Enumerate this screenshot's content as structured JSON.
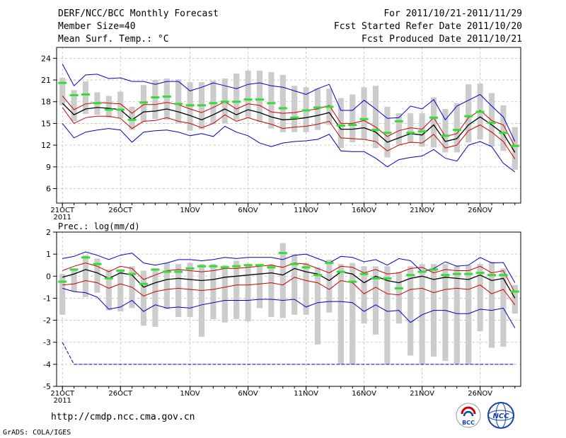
{
  "header": {
    "line1": "DERF/NCC/BCC Monthly Forecast",
    "line2": "Member Size=40",
    "line3": "Mean Surf. Temp.: °C",
    "right1": "For 2011/10/21-2011/11/29",
    "right2": "Fcst Started Refer Date 2011/10/20",
    "right3": "Fcst Produced Date 2011/10/21"
  },
  "footer": {
    "url": "http://cmdp.ncc.cma.gov.cn",
    "credit": "GrADS: COLA/IGES",
    "logo_bcc": "BCC",
    "logo_ncc": "NCC"
  },
  "colors": {
    "max_min": "#0000cc",
    "spread": "#cc0000",
    "mean": "#000000",
    "ens_dot": "#33dd33",
    "box": "#cccccc"
  },
  "chart_data": [
    {
      "type": "line",
      "title": "Mean Surf. Temp.: °C",
      "xlabel": "",
      "ylabel": "",
      "ylim": [
        4,
        25.5
      ],
      "yticks": [
        6,
        9,
        12,
        15,
        18,
        21,
        24
      ],
      "xlim": [
        20.5,
        60.5
      ],
      "xtick_days": [
        21,
        26,
        32,
        37,
        42,
        47,
        52,
        57
      ],
      "xtick_labels": [
        "21OCT",
        "26OCT",
        "1NOV",
        "6NOV",
        "11NOV",
        "16NOV",
        "21NOV",
        "26NOV"
      ],
      "year_label": "2011",
      "x": [
        21,
        22,
        23,
        24,
        25,
        26,
        27,
        28,
        29,
        30,
        31,
        32,
        33,
        34,
        35,
        36,
        37,
        38,
        39,
        40,
        41,
        42,
        43,
        44,
        45,
        46,
        47,
        48,
        49,
        50,
        51,
        52,
        53,
        54,
        55,
        56,
        57,
        58,
        59,
        60
      ],
      "series": [
        {
          "name": "max",
          "values": [
            23.2,
            20.2,
            21.7,
            21.8,
            21.2,
            21.3,
            20.8,
            20.8,
            20.4,
            20.8,
            20.8,
            19.5,
            20.0,
            20.6,
            20.2,
            19.8,
            20.4,
            20.6,
            20.2,
            20.0,
            19.5,
            19.0,
            19.8,
            20.4,
            16.8,
            16.8,
            18.2,
            17.0,
            15.7,
            15.8,
            17.4,
            17.0,
            18.3,
            15.5,
            17.4,
            18.2,
            19.0,
            17.4,
            15.9,
            12.5
          ]
        },
        {
          "name": "upper",
          "values": [
            18.8,
            16.9,
            17.7,
            17.9,
            17.8,
            17.7,
            16.4,
            17.6,
            17.6,
            17.9,
            17.6,
            17.0,
            16.5,
            17.2,
            18.0,
            17.0,
            17.7,
            17.5,
            16.6,
            16.4,
            16.5,
            16.8,
            17.0,
            17.5,
            15.0,
            15.0,
            15.4,
            14.5,
            13.2,
            14.0,
            14.4,
            14.2,
            15.8,
            13.2,
            13.6,
            15.8,
            16.8,
            15.4,
            14.8,
            11.8
          ]
        },
        {
          "name": "mean",
          "values": [
            17.8,
            16.2,
            17.0,
            17.2,
            17.1,
            16.9,
            15.5,
            16.6,
            16.7,
            17.0,
            16.6,
            16.1,
            15.5,
            16.2,
            17.0,
            16.2,
            16.9,
            16.5,
            15.9,
            15.5,
            15.6,
            15.8,
            16.1,
            16.5,
            14.2,
            14.2,
            14.4,
            13.8,
            12.4,
            13.0,
            13.6,
            13.4,
            14.8,
            12.5,
            12.9,
            14.8,
            15.9,
            14.8,
            13.6,
            11.0
          ]
        },
        {
          "name": "lower",
          "values": [
            17.2,
            15.0,
            15.8,
            16.0,
            16.0,
            15.7,
            14.3,
            15.3,
            15.4,
            15.8,
            15.3,
            15.0,
            14.4,
            15.0,
            16.2,
            15.3,
            15.8,
            15.3,
            14.9,
            14.3,
            14.5,
            14.6,
            14.9,
            15.3,
            13.0,
            12.9,
            12.8,
            12.5,
            11.2,
            12.0,
            12.4,
            12.3,
            13.5,
            11.6,
            12.0,
            14.0,
            14.8,
            13.8,
            12.5,
            10.1
          ]
        },
        {
          "name": "min",
          "values": [
            15.0,
            13.0,
            13.8,
            14.1,
            14.3,
            14.1,
            12.4,
            13.8,
            14.0,
            14.1,
            13.8,
            13.3,
            13.6,
            13.2,
            14.6,
            13.8,
            13.3,
            12.3,
            11.8,
            12.3,
            12.5,
            12.6,
            12.8,
            13.5,
            11.2,
            11.1,
            11.1,
            10.2,
            9.0,
            10.0,
            10.3,
            10.5,
            11.4,
            10.2,
            9.8,
            12.0,
            12.5,
            11.8,
            9.5,
            8.3
          ]
        },
        {
          "name": "ensemble_member",
          "values": [
            20.6,
            18.9,
            19.0,
            17.8,
            16.9,
            16.9,
            15.5,
            17.9,
            18.6,
            18.7,
            17.7,
            17.5,
            17.5,
            17.8,
            18.0,
            18.0,
            18.3,
            18.3,
            17.8,
            17.1,
            15.8,
            16.8,
            17.2,
            17.3,
            14.7,
            14.8,
            15.6,
            14.1,
            13.7,
            15.3,
            13.7,
            13.9,
            15.8,
            13.3,
            14.1,
            16.0,
            16.6,
            15.1,
            13.7,
            11.9
          ]
        },
        {
          "name": "box_high",
          "values": [
            21.3,
            19.6,
            20.8,
            19.3,
            18.8,
            19.4,
            17.3,
            20.3,
            21.0,
            21.2,
            21.1,
            20.7,
            20.7,
            20.9,
            21.2,
            21.9,
            22.3,
            22.3,
            22.1,
            21.7,
            20.2,
            20.0,
            19.8,
            19.8,
            18.5,
            19.0,
            20.0,
            20.2,
            17.3,
            16.4,
            16.4,
            16.4,
            18.6,
            17.0,
            17.8,
            20.4,
            20.5,
            19.2,
            17.5,
            14.5
          ]
        },
        {
          "name": "box_low",
          "values": [
            17.5,
            15.3,
            16.3,
            16.2,
            15.8,
            15.7,
            14.1,
            15.2,
            15.6,
            15.5,
            15.0,
            14.0,
            14.2,
            14.9,
            15.0,
            15.5,
            15.7,
            15.2,
            14.3,
            13.8,
            13.8,
            13.8,
            14.1,
            14.8,
            11.6,
            12.4,
            12.8,
            11.6,
            10.3,
            12.1,
            12.3,
            11.8,
            11.7,
            11.0,
            11.0,
            12.4,
            12.8,
            11.8,
            11.2,
            8.6
          ]
        }
      ]
    },
    {
      "type": "line",
      "title": "Prec.: log(mm/d)",
      "xlabel": "",
      "ylabel": "",
      "ylim": [
        -5,
        2
      ],
      "yticks": [
        -5,
        -4,
        -3,
        -2,
        -1,
        0,
        1,
        2
      ],
      "xlim": [
        20.5,
        60.5
      ],
      "xtick_days": [
        21,
        26,
        32,
        37,
        42,
        47,
        52,
        57
      ],
      "xtick_labels": [
        "21OCT",
        "26OCT",
        "1NOV",
        "6NOV",
        "11NOV",
        "16NOV",
        "21NOV",
        "26NOV"
      ],
      "year_label": "2011",
      "x": [
        21,
        22,
        23,
        24,
        25,
        26,
        27,
        28,
        29,
        30,
        31,
        32,
        33,
        34,
        35,
        36,
        37,
        38,
        39,
        40,
        41,
        42,
        43,
        44,
        45,
        46,
        47,
        48,
        49,
        50,
        51,
        52,
        53,
        54,
        55,
        56,
        57,
        58,
        59,
        60
      ],
      "series": [
        {
          "name": "max",
          "values": [
            0.8,
            0.9,
            1.1,
            0.95,
            0.75,
            0.95,
            1.05,
            0.6,
            0.5,
            0.6,
            0.75,
            0.75,
            0.7,
            0.75,
            0.85,
            0.8,
            0.85,
            0.85,
            0.85,
            0.75,
            0.95,
            1.0,
            0.8,
            0.6,
            0.9,
            0.85,
            0.65,
            0.75,
            0.5,
            0.8,
            0.7,
            0.2,
            0.35,
            0.65,
            0.45,
            0.5,
            0.85,
            0.6,
            0.62,
            -0.3
          ]
        },
        {
          "name": "upper",
          "values": [
            0.25,
            0.45,
            0.6,
            0.45,
            0.2,
            0.45,
            0.35,
            -0.15,
            0.05,
            0.25,
            0.3,
            0.25,
            0.2,
            0.25,
            0.35,
            0.35,
            0.4,
            0.45,
            0.5,
            0.4,
            0.6,
            0.55,
            0.35,
            0.15,
            0.45,
            0.4,
            0.15,
            0.3,
            0.1,
            0.15,
            0.35,
            0.4,
            0.15,
            0.3,
            0.25,
            0.25,
            0.45,
            0.15,
            0.25,
            -0.75
          ]
        },
        {
          "name": "mean",
          "values": [
            -0.05,
            0.1,
            0.3,
            0.15,
            -0.1,
            0.15,
            0.05,
            -0.5,
            -0.3,
            -0.15,
            -0.1,
            -0.15,
            -0.2,
            -0.15,
            -0.05,
            0.0,
            0.05,
            0.1,
            0.15,
            0.05,
            0.35,
            0.2,
            0.1,
            -0.2,
            0.2,
            0.1,
            -0.3,
            0.0,
            -0.2,
            -0.3,
            -0.1,
            0.0,
            -0.15,
            -0.05,
            -0.1,
            -0.15,
            0.05,
            -0.2,
            -0.1,
            -1.0
          ]
        },
        {
          "name": "lower",
          "values": [
            -0.4,
            -0.35,
            -0.2,
            -0.3,
            -0.55,
            -0.35,
            -0.5,
            -0.9,
            -0.7,
            -0.6,
            -0.55,
            -0.6,
            -0.65,
            -0.6,
            -0.5,
            -0.4,
            -0.4,
            -0.35,
            -0.3,
            -0.4,
            -0.05,
            -0.2,
            -0.3,
            -0.6,
            -0.2,
            -0.3,
            -0.8,
            -0.5,
            -0.8,
            -0.85,
            -0.6,
            -0.55,
            -0.75,
            -0.6,
            -0.55,
            -0.6,
            -0.4,
            -0.8,
            -0.6,
            -1.3
          ]
        },
        {
          "name": "min",
          "values": [
            -0.55,
            -0.7,
            -0.75,
            -0.95,
            -1.5,
            -1.4,
            -1.1,
            -1.6,
            -1.3,
            -1.45,
            -1.4,
            -1.45,
            -1.3,
            -1.2,
            -1.1,
            -1.1,
            -1.1,
            -1.05,
            -1.05,
            -1.1,
            -1.05,
            -1.4,
            -1.2,
            -1.15,
            -1.15,
            -1.2,
            -1.6,
            -1.3,
            -1.6,
            -1.55,
            -2.1,
            -1.75,
            -1.55,
            -1.55,
            -1.7,
            -1.7,
            -1.5,
            -1.55,
            -1.45,
            -2.35
          ]
        },
        {
          "name": "min_floor",
          "values": [
            -3.0,
            -4.0,
            -4.0,
            -4.0,
            -4.0,
            -4.0,
            -4.0,
            -4.0,
            -4.0,
            -4.0,
            -4.0,
            -4.0,
            -4.0,
            -4.0,
            -4.0,
            -4.0,
            -4.0,
            -4.0,
            -4.0,
            -4.0,
            -4.0,
            -4.0,
            -4.0,
            -4.0,
            -4.0,
            -4.0,
            -4.0,
            -4.0,
            -4.0,
            -4.0,
            -4.0,
            -4.0,
            -4.0,
            -4.0,
            -4.0,
            -4.0,
            -4.0,
            -4.0,
            -4.0,
            -4.0
          ]
        },
        {
          "name": "ensemble_member",
          "values": [
            -0.25,
            0.3,
            0.85,
            0.55,
            -0.1,
            0.25,
            0.1,
            -0.35,
            0.3,
            0.2,
            0.2,
            0.35,
            0.45,
            0.45,
            0.4,
            0.45,
            0.5,
            0.5,
            0.4,
            1.05,
            0.55,
            0.4,
            0.05,
            0.6,
            0.2,
            -0.25,
            0.1,
            -0.1,
            -0.1,
            -0.55,
            0.05,
            0.2,
            0.3,
            0.05,
            0.1,
            0.1,
            0.15,
            0.05,
            0.05,
            -0.7
          ]
        },
        {
          "name": "box_high",
          "values": [
            0.1,
            0.35,
            0.95,
            0.8,
            0.3,
            0.25,
            0.45,
            0.25,
            0.35,
            0.6,
            0.55,
            0.6,
            0.55,
            0.55,
            0.5,
            0.7,
            0.55,
            0.5,
            0.55,
            1.5,
            1.0,
            0.6,
            0.4,
            0.75,
            0.55,
            0.6,
            0.45,
            0.45,
            0.45,
            0.2,
            0.45,
            0.55,
            0.55,
            0.55,
            0.5,
            0.5,
            0.55,
            0.65,
            0.35,
            -0.4
          ]
        },
        {
          "name": "box_low",
          "values": [
            -1.75,
            -0.7,
            -0.95,
            -0.75,
            -1.55,
            -1.6,
            -1.45,
            -2.25,
            -2.3,
            -1.5,
            -1.85,
            -1.85,
            -2.75,
            -1.95,
            -2.1,
            -1.95,
            -2.05,
            -1.45,
            -1.85,
            -1.9,
            -1.75,
            -1.75,
            -3.1,
            -1.65,
            -4.0,
            -4.0,
            -2.15,
            -2.65,
            -4.0,
            -2.15,
            -3.6,
            -4.0,
            -3.65,
            -3.85,
            -4.0,
            -4.0,
            -2.5,
            -3.25,
            -3.2,
            -1.7
          ]
        }
      ]
    }
  ]
}
